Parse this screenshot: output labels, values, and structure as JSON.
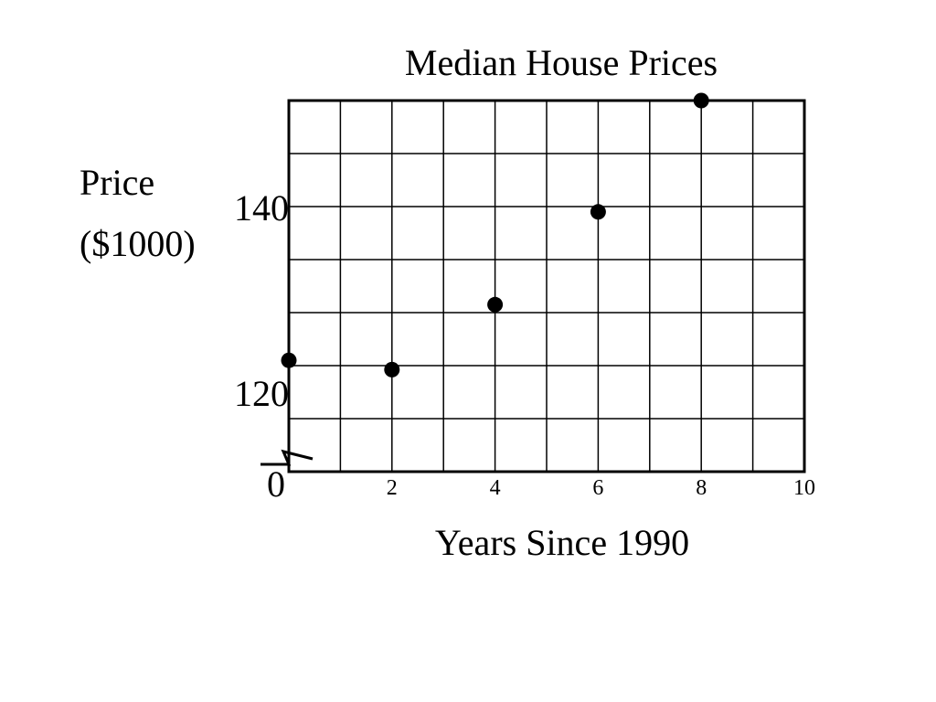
{
  "chart_data": {
    "type": "scatter",
    "title": "Median House Prices",
    "xlabel": "Years Since 1990",
    "ylabel_lines": [
      "Price",
      "($1000)"
    ],
    "x_ticks": [
      "0",
      "2",
      "4",
      "6",
      "8",
      "10"
    ],
    "y_ticks": [
      {
        "label": "120",
        "value": 120
      },
      {
        "label": "140",
        "value": 140
      }
    ],
    "y_axis_break": true,
    "xlim": [
      0,
      10
    ],
    "ylim": [
      112,
      152
    ],
    "grid": true,
    "x": [
      0,
      2,
      4,
      6,
      8
    ],
    "y": [
      124,
      123,
      130,
      140,
      152
    ],
    "marker_color": "#000000"
  }
}
